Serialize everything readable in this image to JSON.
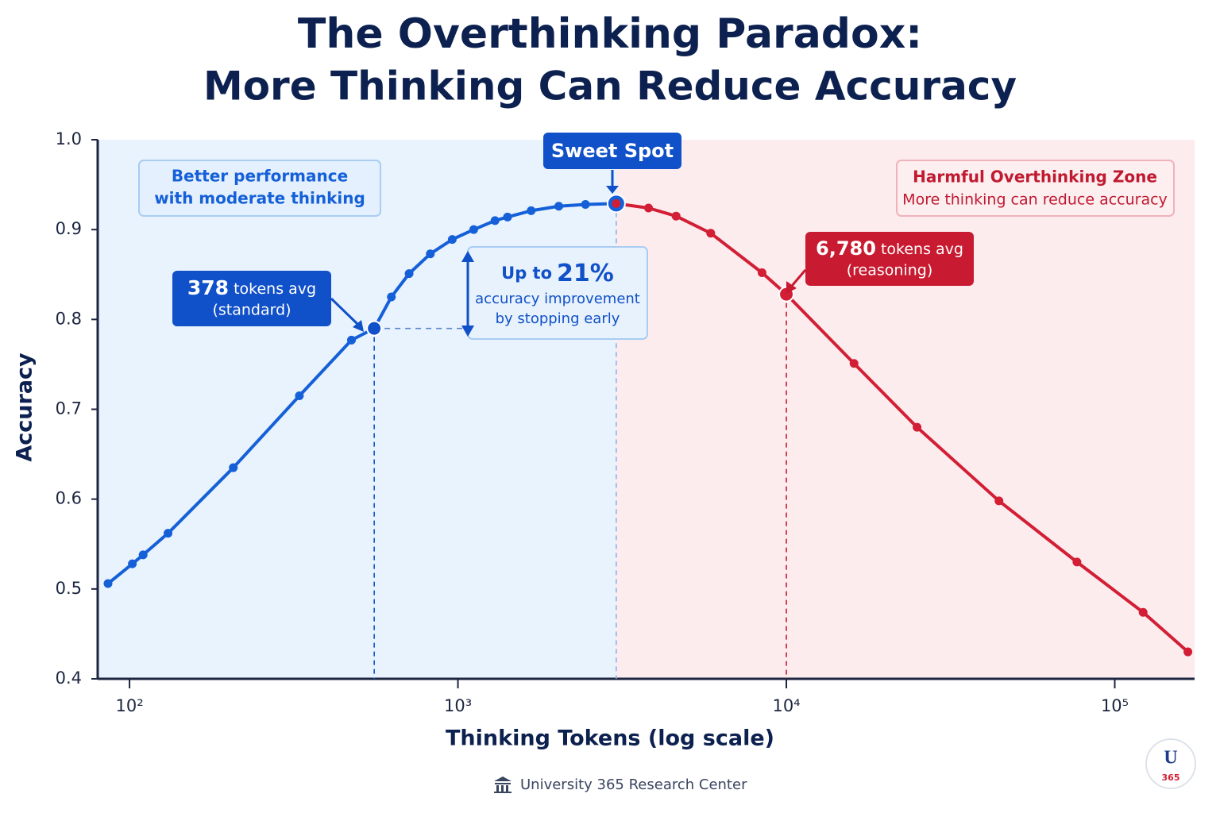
{
  "chart_data": {
    "type": "line",
    "title": "The Overthinking Paradox:",
    "subtitle": "More Thinking Can Reduce Accuracy",
    "xlabel": "Thinking Tokens (log scale)",
    "ylabel": "Accuracy",
    "xscale": "log",
    "xlim": [
      80,
      175000
    ],
    "ylim": [
      0.4,
      1.0
    ],
    "xticks": [
      {
        "value": 100,
        "label": "10²"
      },
      {
        "value": 1000,
        "label": "10³"
      },
      {
        "value": 10000,
        "label": "10⁴"
      },
      {
        "value": 100000,
        "label": "10⁵"
      }
    ],
    "yticks": [
      0.4,
      0.5,
      0.6,
      0.7,
      0.8,
      0.9,
      {
        "value": 1,
        "label": "1.0"
      }
    ],
    "series": [
      {
        "color": "#1560d8",
        "x": [
          86,
          102,
          110,
          131,
          207,
          329,
          474,
          556,
          627,
          710,
          824,
          961,
          1117,
          1297,
          1416,
          1671,
          2028,
          2445,
          3034
        ],
        "values": [
          0.506,
          0.528,
          0.538,
          0.562,
          0.635,
          0.715,
          0.777,
          0.79,
          0.825,
          0.851,
          0.873,
          0.889,
          0.9,
          0.91,
          0.914,
          0.921,
          0.926,
          0.928,
          0.929
        ]
      },
      {
        "color": "#d21f35",
        "x": [
          3034,
          3805,
          4616,
          5884,
          8433,
          10000,
          16070,
          25000,
          44400,
          76700,
          122000,
          167000
        ],
        "values": [
          0.929,
          0.924,
          0.915,
          0.896,
          0.852,
          0.828,
          0.751,
          0.68,
          0.598,
          0.53,
          0.474,
          0.43
        ]
      }
    ],
    "annotations": {
      "good_zone": [
        "Better performance",
        "with moderate thinking"
      ],
      "bad_zone": [
        "Harmful Overthinking Zone",
        "More thinking can reduce accuracy"
      ],
      "sweet_spot": "Sweet Spot",
      "standard": {
        "number": "378",
        "unit": "tokens avg",
        "note": "(standard)"
      },
      "reasoning": {
        "number": "6,780",
        "unit": "tokens avg",
        "note": "(reasoning)"
      },
      "improvement": {
        "prefix": "Up to",
        "number": "21%",
        "lines": [
          "accuracy improvement",
          "by stopping early"
        ]
      }
    },
    "footer": "University 365 Research Center",
    "logo": {
      "letter": "U",
      "number": "365"
    }
  }
}
